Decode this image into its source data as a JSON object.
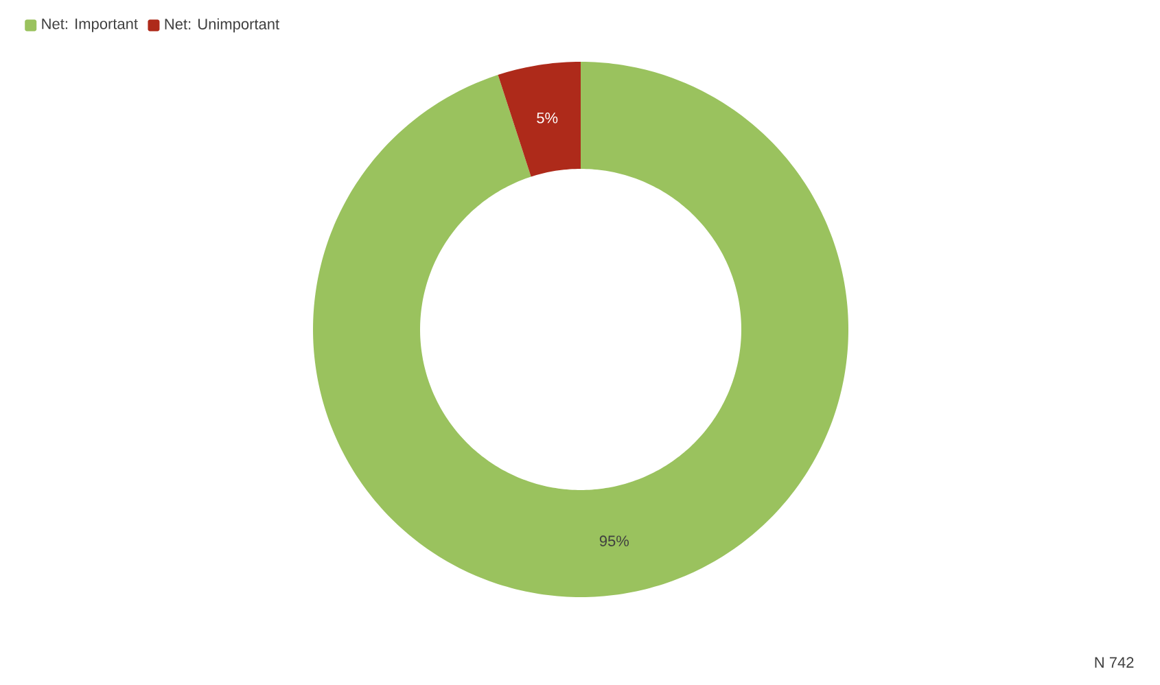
{
  "chart_data": {
    "type": "donut",
    "categories": [
      "Net: Important",
      "Net: Unimportant"
    ],
    "values": [
      95,
      5
    ],
    "colors": [
      "#9ac25e",
      "#ae2a1a"
    ],
    "value_labels": [
      "95%",
      "5%"
    ],
    "legend": "top left",
    "annotations": [
      "N 742"
    ]
  }
}
